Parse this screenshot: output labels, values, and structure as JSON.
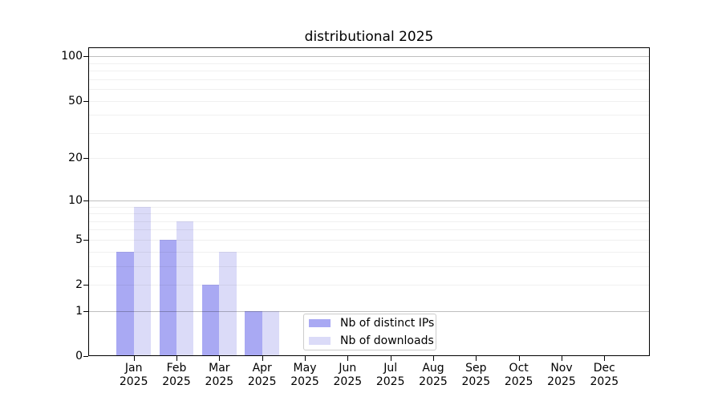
{
  "chart_data": {
    "type": "bar",
    "title": "distributional 2025",
    "categories": [
      "Jan",
      "Feb",
      "Mar",
      "Apr",
      "May",
      "Jun",
      "Jul",
      "Aug",
      "Sep",
      "Oct",
      "Nov",
      "Dec"
    ],
    "category_year": "2025",
    "series": [
      {
        "key": "distinct-ips",
        "name": "Nb of distinct IPs",
        "color": "#a9a9f3",
        "values": [
          4,
          5,
          2,
          1,
          0,
          0,
          0,
          0,
          0,
          0,
          0,
          0
        ]
      },
      {
        "key": "downloads",
        "name": "Nb of downloads",
        "color": "#dbdbf8",
        "values": [
          9,
          7,
          4,
          1,
          0,
          0,
          0,
          0,
          0,
          0,
          0,
          0
        ]
      }
    ],
    "yscale": "log1p",
    "ylim": [
      0,
      115
    ],
    "yticks": [
      0,
      1,
      2,
      5,
      10,
      20,
      50,
      100
    ],
    "major_gridlines": [
      1,
      10,
      100
    ],
    "minor_gridlines": [
      2,
      3,
      4,
      5,
      6,
      7,
      8,
      9,
      20,
      30,
      40,
      50,
      60,
      70,
      80,
      90
    ],
    "grid": true,
    "legend_position": "lower center",
    "colors": {
      "axis": "#000000",
      "grid_major": "rgba(0,0,0,0.25)",
      "grid_minor": "rgba(0,0,0,0.06)",
      "background": "#ffffff"
    }
  }
}
